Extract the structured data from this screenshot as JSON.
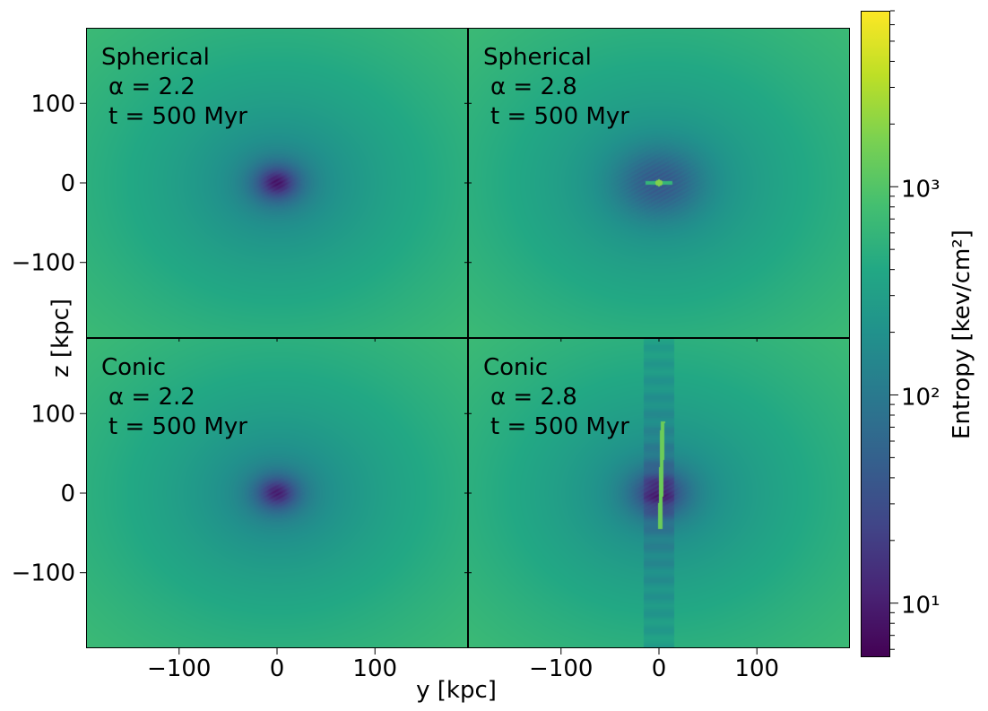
{
  "chart_data": {
    "type": "heatmap",
    "figure": {
      "xlabel": "y [kpc]",
      "ylabel": "z [kpc]",
      "xlim": [
        -195,
        195
      ],
      "ylim": [
        -195,
        195
      ],
      "x_ticks": [
        -100,
        0,
        100
      ],
      "y_ticks": [
        -100,
        0,
        100
      ],
      "colormap": "viridis"
    },
    "colorbar": {
      "label": "Entropy [kev/cm²]",
      "scale": "log",
      "range": [
        5.5,
        7000
      ],
      "ticks": [
        10,
        100,
        1000
      ],
      "tick_labels": [
        "10¹",
        "10²",
        "10³"
      ]
    },
    "panels": [
      {
        "row": 0,
        "col": 0,
        "lines": [
          "Spherical",
          "α = 2.2",
          "t = 500 Myr"
        ],
        "core_entropy": 10,
        "core_radius": 30,
        "feature": "none"
      },
      {
        "row": 0,
        "col": 1,
        "lines": [
          "Spherical",
          "α = 2.8",
          "t = 500 Myr"
        ],
        "core_entropy": 50,
        "core_radius": 45,
        "feature": "hot-spot"
      },
      {
        "row": 1,
        "col": 0,
        "lines": [
          "Conic",
          "α = 2.2",
          "t = 500 Myr"
        ],
        "core_entropy": 12,
        "core_radius": 28,
        "feature": "none"
      },
      {
        "row": 1,
        "col": 1,
        "lines": [
          "Conic",
          "α = 2.8",
          "t = 500 Myr"
        ],
        "core_entropy": 20,
        "core_radius": 35,
        "feature": "vertical-jet"
      }
    ]
  }
}
